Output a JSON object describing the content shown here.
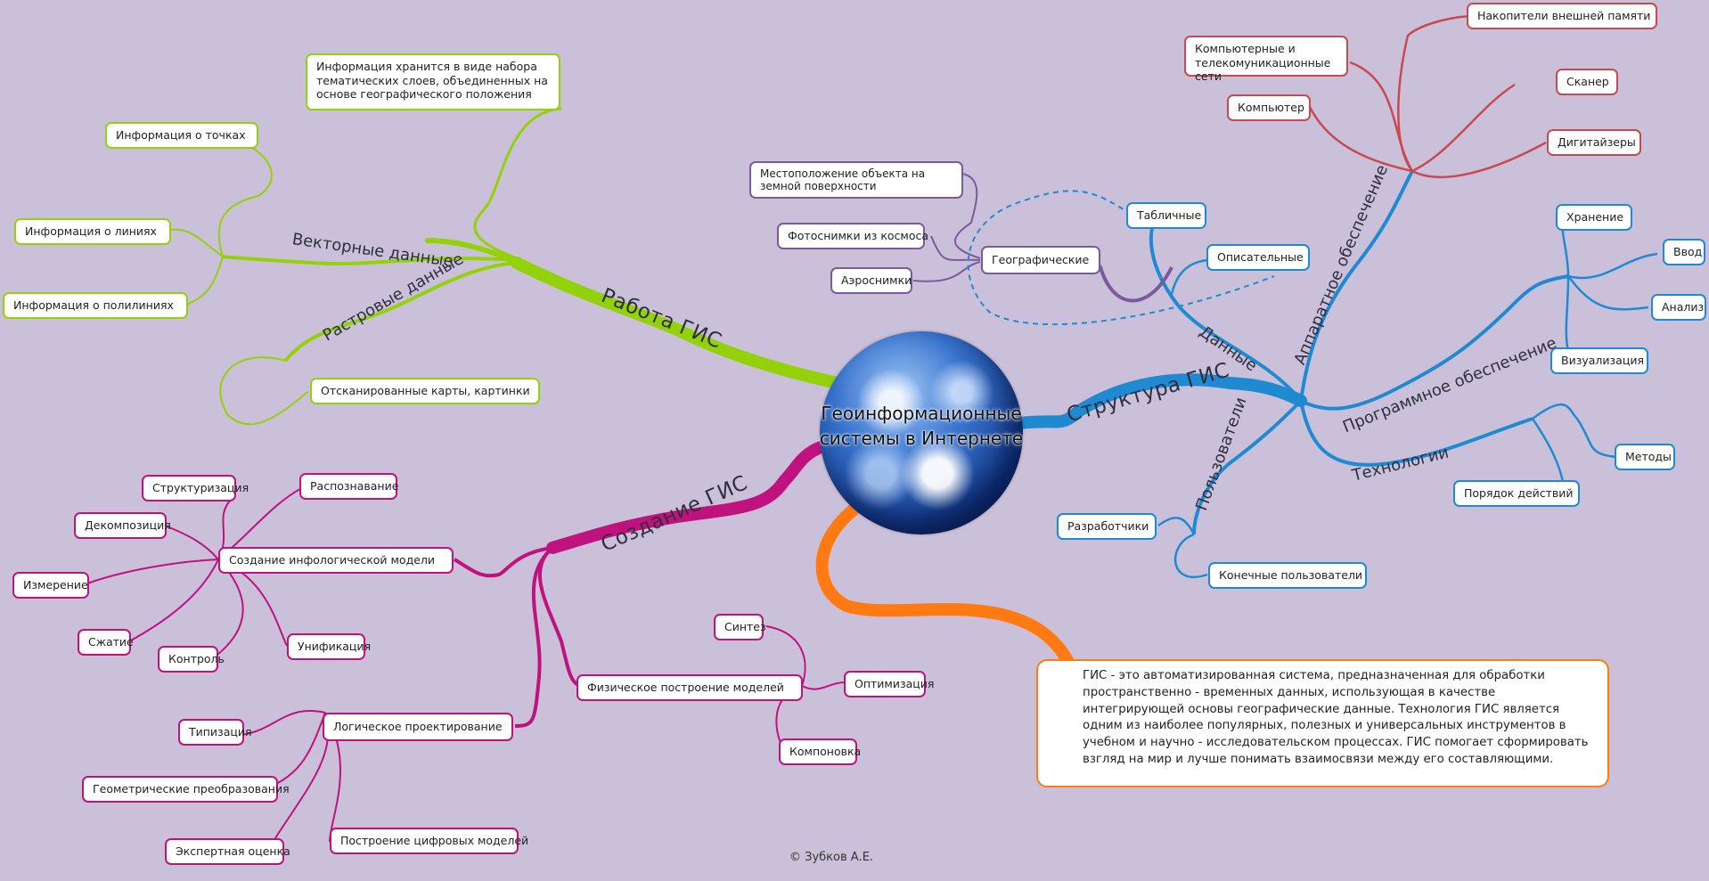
{
  "center": {
    "title_line1": "Геоинформационные",
    "title_line2": "системы в Интернете"
  },
  "branches": {
    "rabota": {
      "label": "Работа ГИС",
      "color": "#93d20b",
      "info_note": "Информация хранится в виде набора тематических слоев, объединенных на основе географического положения",
      "vector": {
        "label": "Векторные данные",
        "items": [
          "Информация о точках",
          "Информация о линиях",
          "Информация о полилиниях"
        ]
      },
      "raster": {
        "label": "Растровые данные",
        "items": [
          "Отсканированные карты, картинки"
        ]
      }
    },
    "struktura": {
      "label": "Структура ГИС",
      "color": "#1f8ad2",
      "hardware": {
        "label": "Аппаратное обеспечение",
        "color": "#c8494e",
        "items": [
          "Накопители внешней памяти",
          "Компьютерные и телекомуникационные сети",
          "Сканер",
          "Компьютер",
          "Дигитайзеры"
        ]
      },
      "data": {
        "label": "Данные",
        "items": [
          "Табличные",
          "Описательные"
        ],
        "geo": {
          "label": "Географические",
          "color": "#7b5a9c",
          "items": [
            "Местоположение объекта на земной поверхности",
            "Фотоснимки из космоса",
            "Аэроснимки"
          ]
        }
      },
      "software": {
        "label": "Программное обеспечение",
        "items": [
          "Хранение",
          "Ввод",
          "Анализ",
          "Визуализация"
        ]
      },
      "tech": {
        "label": "Технологии",
        "items": [
          "Методы",
          "Порядок действий"
        ]
      },
      "users": {
        "label": "Пользователи",
        "items": [
          "Разработчики",
          "Конечные пользователи"
        ]
      }
    },
    "sozdanie": {
      "label": "Создание ГИС",
      "color": "#c0127f",
      "infolog": {
        "label": "Создание инфологической модели",
        "items": [
          "Структуризация",
          "Распознавание",
          "Декомпозиция",
          "Измерение",
          "Сжатие",
          "Контроль",
          "Унификация"
        ]
      },
      "physical": {
        "label": "Физическое построение моделей",
        "items": [
          "Синтез",
          "Оптимизация",
          "Компоновка"
        ]
      },
      "logical": {
        "label": "Логическое проектирование",
        "items": [
          "Типизация",
          "Геометрические преобразования",
          "Экспертная оценка",
          "Построение цифровых моделей"
        ]
      }
    },
    "description": {
      "color": "#ff7a12",
      "text": "ГИС - это автоматизированная система, предназначенная для обработки пространственно - временных данных, использующая в качестве интегрирующей основы географические данные. Технология ГИС является одним из наиболее популярных, полезных и универсальных инструментов в учебном и научно - исследовательском процессах. ГИС помогает сформировать взгляд на мир и лучше понимать взаимосвязи между его составляющими."
    }
  },
  "footer": {
    "copyright": "© Зубков А.Е."
  }
}
